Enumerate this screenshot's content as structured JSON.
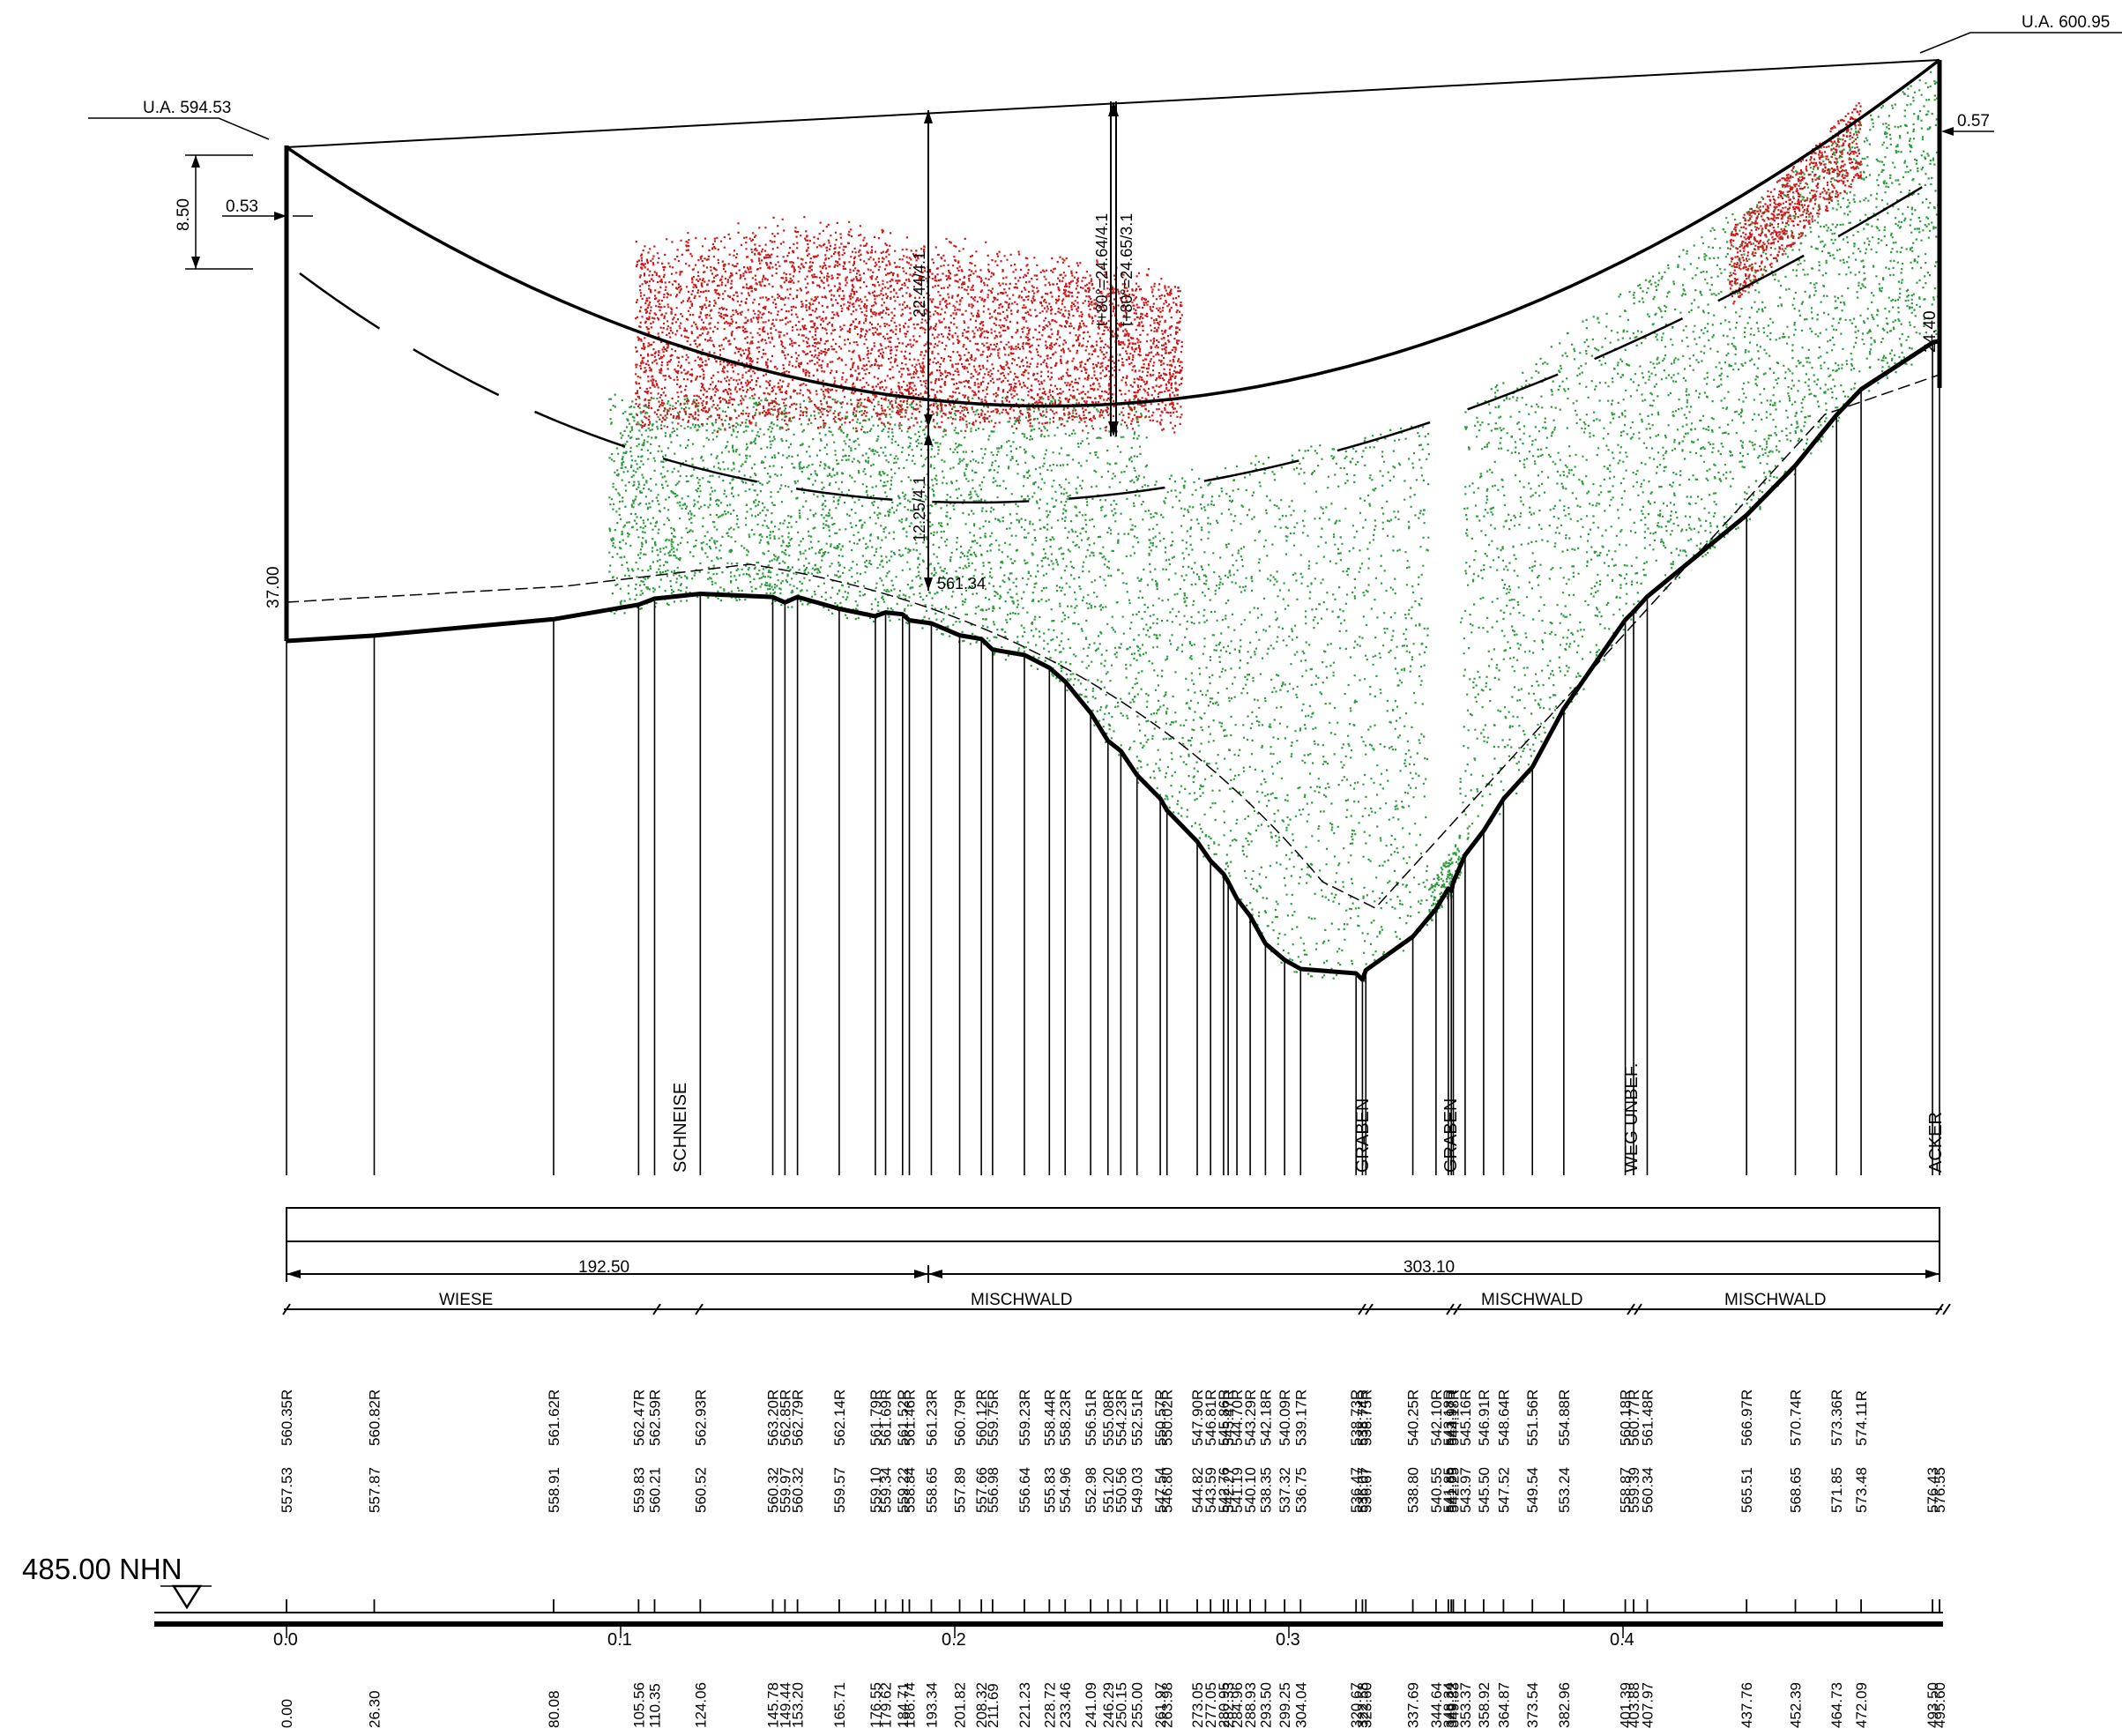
{
  "header": {
    "ua_left": "U.A. 594.53",
    "ua_right": "U.A. 600.95",
    "dim_height": "8.50",
    "offset_left": "0.53",
    "offset_right": "0.57",
    "pole_left_height": "37.00",
    "pole_right_height": "24.40",
    "sag_label_1": "22.44/4.1",
    "sag_label_2": "12.25/4.1",
    "sag_label_3": "t+80°=24.64/4.1",
    "sag_label_4": "t+80°=24.65/3.1",
    "point_label": "561.34"
  },
  "features": {
    "schneise": "SCHNEISE",
    "graben_1": "GRABEN",
    "graben_2": "GRABEN",
    "weg": "WEG UNBEF.",
    "acker": "ACKER"
  },
  "span": {
    "left": "192.50",
    "right": "303.10"
  },
  "land_use": {
    "wiese": "WIESE",
    "mischwald_1": "MISCHWALD",
    "mischwald_2": "MISCHWALD",
    "mischwald_3": "MISCHWALD"
  },
  "datum": "485.00 NHN",
  "axis_ticks": [
    "0.0",
    "0.1",
    "0.2",
    "0.3",
    "0.4"
  ],
  "colors": {
    "line": "#000000",
    "vegetation_green": "#2e9b3e",
    "vegetation_red": "#cc1a1a"
  },
  "stations": [
    {
      "ch": "0.00",
      "gr": "557.53",
      "ve": "560.35R"
    },
    {
      "ch": "26.30",
      "gr": "557.87",
      "ve": "560.82R"
    },
    {
      "ch": "80.08",
      "gr": "558.91",
      "ve": "561.62R"
    },
    {
      "ch": "105.56",
      "gr": "559.83",
      "ve": "562.47R"
    },
    {
      "ch": "110.35",
      "gr": "560.21",
      "ve": "562.59R"
    },
    {
      "ch": "124.06",
      "gr": "560.52",
      "ve": "562.93R"
    },
    {
      "ch": "145.78",
      "gr": "560.32",
      "ve": "563.20R"
    },
    {
      "ch": "149.44",
      "gr": "559.97",
      "ve": "562.85R"
    },
    {
      "ch": "153.20",
      "gr": "560.32",
      "ve": "562.79R"
    },
    {
      "ch": "165.71",
      "gr": "559.57",
      "ve": "562.14R"
    },
    {
      "ch": "176.55",
      "gr": "559.10",
      "ve": "561.79R"
    },
    {
      "ch": "179.62",
      "gr": "559.34",
      "ve": "561.69R"
    },
    {
      "ch": "184.71",
      "gr": "559.22",
      "ve": "561.52R"
    },
    {
      "ch": "186.74",
      "gr": "558.84",
      "ve": "561.46R"
    },
    {
      "ch": "193.34",
      "gr": "558.65",
      "ve": "561.23R"
    },
    {
      "ch": "201.82",
      "gr": "557.89",
      "ve": "560.79R"
    },
    {
      "ch": "208.32",
      "gr": "557.66",
      "ve": "560.12R"
    },
    {
      "ch": "211.69",
      "gr": "556.98",
      "ve": "559.75R"
    },
    {
      "ch": "221.23",
      "gr": "556.64",
      "ve": "559.23R"
    },
    {
      "ch": "228.72",
      "gr": "555.83",
      "ve": "558.44R"
    },
    {
      "ch": "233.46",
      "gr": "554.96",
      "ve": "558.23R"
    },
    {
      "ch": "241.09",
      "gr": "552.98",
      "ve": "556.51R"
    },
    {
      "ch": "246.29",
      "gr": "551.20",
      "ve": "555.08R"
    },
    {
      "ch": "250.15",
      "gr": "550.56",
      "ve": "554.23R"
    },
    {
      "ch": "255.00",
      "gr": "549.03",
      "ve": "552.51R"
    },
    {
      "ch": "261.97",
      "gr": "547.54",
      "ve": "550.57R"
    },
    {
      "ch": "263.98",
      "gr": "546.80",
      "ve": "550.02R"
    },
    {
      "ch": "273.05",
      "gr": "544.82",
      "ve": "547.90R"
    },
    {
      "ch": "277.05",
      "gr": "543.59",
      "ve": "546.81R"
    },
    {
      "ch": "280.95",
      "gr": "542.76",
      "ve": "545.86R"
    },
    {
      "ch": "282.33",
      "gr": "542.27",
      "ve": "545.47R"
    },
    {
      "ch": "284.96",
      "gr": "541.19",
      "ve": "544.70R"
    },
    {
      "ch": "288.93",
      "gr": "540.10",
      "ve": "543.29R"
    },
    {
      "ch": "293.50",
      "gr": "538.35",
      "ve": "542.18R"
    },
    {
      "ch": "299.25",
      "gr": "537.32",
      "ve": "540.09R"
    },
    {
      "ch": "304.04",
      "gr": "536.75",
      "ve": "539.17R"
    },
    {
      "ch": "320.67",
      "gr": "536.47",
      "ve": "538.73R"
    },
    {
      "ch": "322.58",
      "gr": "536.07",
      "ve": "538.74R"
    },
    {
      "ch": "323.60",
      "gr": "536.67",
      "ve": "538.75R"
    },
    {
      "ch": "337.69",
      "gr": "538.80",
      "ve": "540.25R"
    },
    {
      "ch": "344.64",
      "gr": "540.55",
      "ve": "542.10R"
    },
    {
      "ch": "348.34",
      "gr": "541.85",
      "ve": "543.18R"
    },
    {
      "ch": "349.22",
      "gr": "541.69",
      "ve": "543.97R"
    },
    {
      "ch": "349.83",
      "gr": "542.25",
      "ve": "544.18R"
    },
    {
      "ch": "353.37",
      "gr": "543.97",
      "ve": "545.16R"
    },
    {
      "ch": "358.92",
      "gr": "545.50",
      "ve": "546.91R"
    },
    {
      "ch": "364.87",
      "gr": "547.52",
      "ve": "548.64R"
    },
    {
      "ch": "373.54",
      "gr": "549.54",
      "ve": "551.56R"
    },
    {
      "ch": "382.96",
      "gr": "553.24",
      "ve": "554.88R"
    },
    {
      "ch": "401.39",
      "gr": "558.87",
      "ve": "560.18R"
    },
    {
      "ch": "403.88",
      "gr": "559.39",
      "ve": "560.77R"
    },
    {
      "ch": "407.97",
      "gr": "560.34",
      "ve": "561.48R"
    },
    {
      "ch": "437.76",
      "gr": "565.51",
      "ve": "566.97R"
    },
    {
      "ch": "452.39",
      "gr": "568.65",
      "ve": "570.74R"
    },
    {
      "ch": "464.73",
      "gr": "571.85",
      "ve": "573.36R"
    },
    {
      "ch": "472.09",
      "gr": "573.48",
      "ve": "574.11R"
    },
    {
      "ch": "493.50",
      "gr": "576.43",
      "ve": ""
    },
    {
      "ch": "495.60",
      "gr": "576.55",
      "ve": ""
    }
  ]
}
